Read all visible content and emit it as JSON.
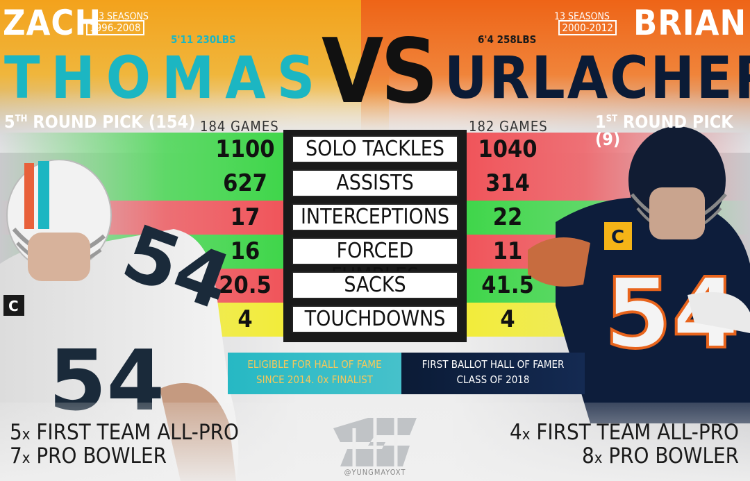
{
  "left_player": {
    "first_name": "ZACH",
    "last_name": "THOMAS",
    "seasons_label": "13 SEASONS",
    "years": "1996-2008",
    "height_weight": "5'11 230LBS",
    "pick": "5TH ROUND PICK (154)",
    "pick_parts": {
      "num": "5",
      "suffix": "TH",
      "rest": " ROUND PICK (154)"
    },
    "games": "184 GAMES",
    "stats": [
      "1100",
      "627",
      "17",
      "16",
      "20.5",
      "4"
    ],
    "hof_line1": "ELIGIBLE FOR HALL OF FAME",
    "hof_line2": "SINCE 2014. 0x FINALIST",
    "honor1_num": "5",
    "honor1_x": "x",
    "honor1_text": " FIRST TEAM ALL-PRO",
    "honor2_num": "7",
    "honor2_x": "x",
    "honor2_text": " PRO BOWLER",
    "jersey_number": "54"
  },
  "right_player": {
    "first_name": "BRIAN",
    "last_name": "URLACHER",
    "seasons_label": "13 SEASONS",
    "years": "2000-2012",
    "height_weight": "6'4 258LBS",
    "pick_parts": {
      "num": "1",
      "suffix": "ST",
      "rest": " ROUND PICK (9)"
    },
    "games": "182 GAMES",
    "stats": [
      "1040",
      "314",
      "22",
      "11",
      "41.5",
      "4"
    ],
    "hof_line1": "FIRST BALLOT HALL OF FAMER",
    "hof_line2": "CLASS OF 2018",
    "honor1_num": "4",
    "honor1_x": "x",
    "honor1_text": " FIRST TEAM ALL-PRO",
    "honor2_num": "8",
    "honor2_x": "x",
    "honor2_text": " PRO BOWLER",
    "jersey_number": "54",
    "captain_badge": "C"
  },
  "vs": "VS",
  "stat_labels": [
    "SOLO TACKLES",
    "ASSISTS",
    "INTERCEPTIONS",
    "FORCED FUMBLES",
    "SACKS",
    "TOUCHDOWNS"
  ],
  "row_result": [
    "left",
    "left",
    "right",
    "left",
    "right",
    "tie"
  ],
  "colors": {
    "win": "#3fd64a",
    "lose": "#f0545a",
    "tie": "#f2ec3a",
    "dolphins_teal": "#1cb6c2",
    "bears_navy": "#0b1b36",
    "left_band": "#f3a21c",
    "right_band": "#ee6417"
  },
  "watermark": "@YUNGMAYOXT"
}
